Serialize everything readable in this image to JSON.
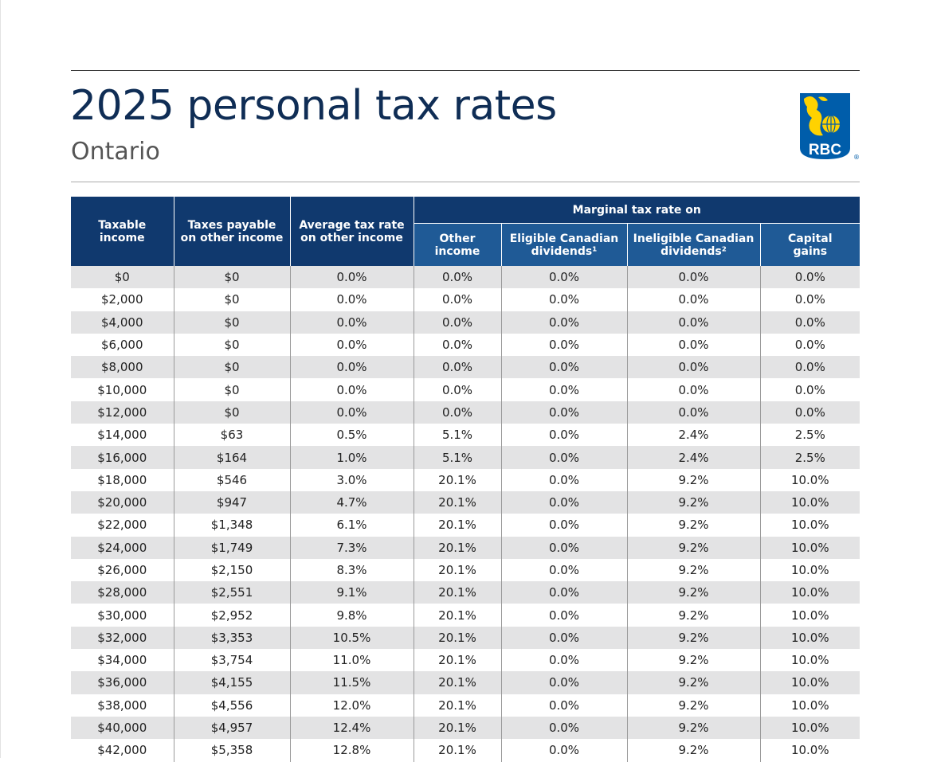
{
  "document": {
    "title": "2025 personal tax rates",
    "subtitle": "Ontario",
    "logo_text": "RBC",
    "logo_mark": "®"
  },
  "colors": {
    "title": "#0f2d55",
    "header_dark": "#10396e",
    "header_light": "#1f5a96",
    "row_shade": "#e3e3e4",
    "logo_blue": "#005daa",
    "logo_gold": "#ffd200"
  },
  "table": {
    "group_header": "Marginal tax rate on",
    "columns": {
      "taxable_income": [
        "Taxable",
        "income"
      ],
      "taxes_payable": [
        "Taxes payable",
        "on other income"
      ],
      "average_rate": [
        "Average tax rate",
        "on other income"
      ],
      "other_income": [
        "Other",
        "income"
      ],
      "eligible_dividends": [
        "Eligible Canadian",
        "dividends¹"
      ],
      "ineligible_dividends": [
        "Ineligible Canadian",
        "dividends²"
      ],
      "capital_gains": [
        "Capital",
        "gains"
      ]
    },
    "rows": [
      [
        "$0",
        "$0",
        "0.0%",
        "0.0%",
        "0.0%",
        "0.0%",
        "0.0%"
      ],
      [
        "$2,000",
        "$0",
        "0.0%",
        "0.0%",
        "0.0%",
        "0.0%",
        "0.0%"
      ],
      [
        "$4,000",
        "$0",
        "0.0%",
        "0.0%",
        "0.0%",
        "0.0%",
        "0.0%"
      ],
      [
        "$6,000",
        "$0",
        "0.0%",
        "0.0%",
        "0.0%",
        "0.0%",
        "0.0%"
      ],
      [
        "$8,000",
        "$0",
        "0.0%",
        "0.0%",
        "0.0%",
        "0.0%",
        "0.0%"
      ],
      [
        "$10,000",
        "$0",
        "0.0%",
        "0.0%",
        "0.0%",
        "0.0%",
        "0.0%"
      ],
      [
        "$12,000",
        "$0",
        "0.0%",
        "0.0%",
        "0.0%",
        "0.0%",
        "0.0%"
      ],
      [
        "$14,000",
        "$63",
        "0.5%",
        "5.1%",
        "0.0%",
        "2.4%",
        "2.5%"
      ],
      [
        "$16,000",
        "$164",
        "1.0%",
        "5.1%",
        "0.0%",
        "2.4%",
        "2.5%"
      ],
      [
        "$18,000",
        "$546",
        "3.0%",
        "20.1%",
        "0.0%",
        "9.2%",
        "10.0%"
      ],
      [
        "$20,000",
        "$947",
        "4.7%",
        "20.1%",
        "0.0%",
        "9.2%",
        "10.0%"
      ],
      [
        "$22,000",
        "$1,348",
        "6.1%",
        "20.1%",
        "0.0%",
        "9.2%",
        "10.0%"
      ],
      [
        "$24,000",
        "$1,749",
        "7.3%",
        "20.1%",
        "0.0%",
        "9.2%",
        "10.0%"
      ],
      [
        "$26,000",
        "$2,150",
        "8.3%",
        "20.1%",
        "0.0%",
        "9.2%",
        "10.0%"
      ],
      [
        "$28,000",
        "$2,551",
        "9.1%",
        "20.1%",
        "0.0%",
        "9.2%",
        "10.0%"
      ],
      [
        "$30,000",
        "$2,952",
        "9.8%",
        "20.1%",
        "0.0%",
        "9.2%",
        "10.0%"
      ],
      [
        "$32,000",
        "$3,353",
        "10.5%",
        "20.1%",
        "0.0%",
        "9.2%",
        "10.0%"
      ],
      [
        "$34,000",
        "$3,754",
        "11.0%",
        "20.1%",
        "0.0%",
        "9.2%",
        "10.0%"
      ],
      [
        "$36,000",
        "$4,155",
        "11.5%",
        "20.1%",
        "0.0%",
        "9.2%",
        "10.0%"
      ],
      [
        "$38,000",
        "$4,556",
        "12.0%",
        "20.1%",
        "0.0%",
        "9.2%",
        "10.0%"
      ],
      [
        "$40,000",
        "$4,957",
        "12.4%",
        "20.1%",
        "0.0%",
        "9.2%",
        "10.0%"
      ],
      [
        "$42,000",
        "$5,358",
        "12.8%",
        "20.1%",
        "0.0%",
        "9.2%",
        "10.0%"
      ]
    ]
  }
}
